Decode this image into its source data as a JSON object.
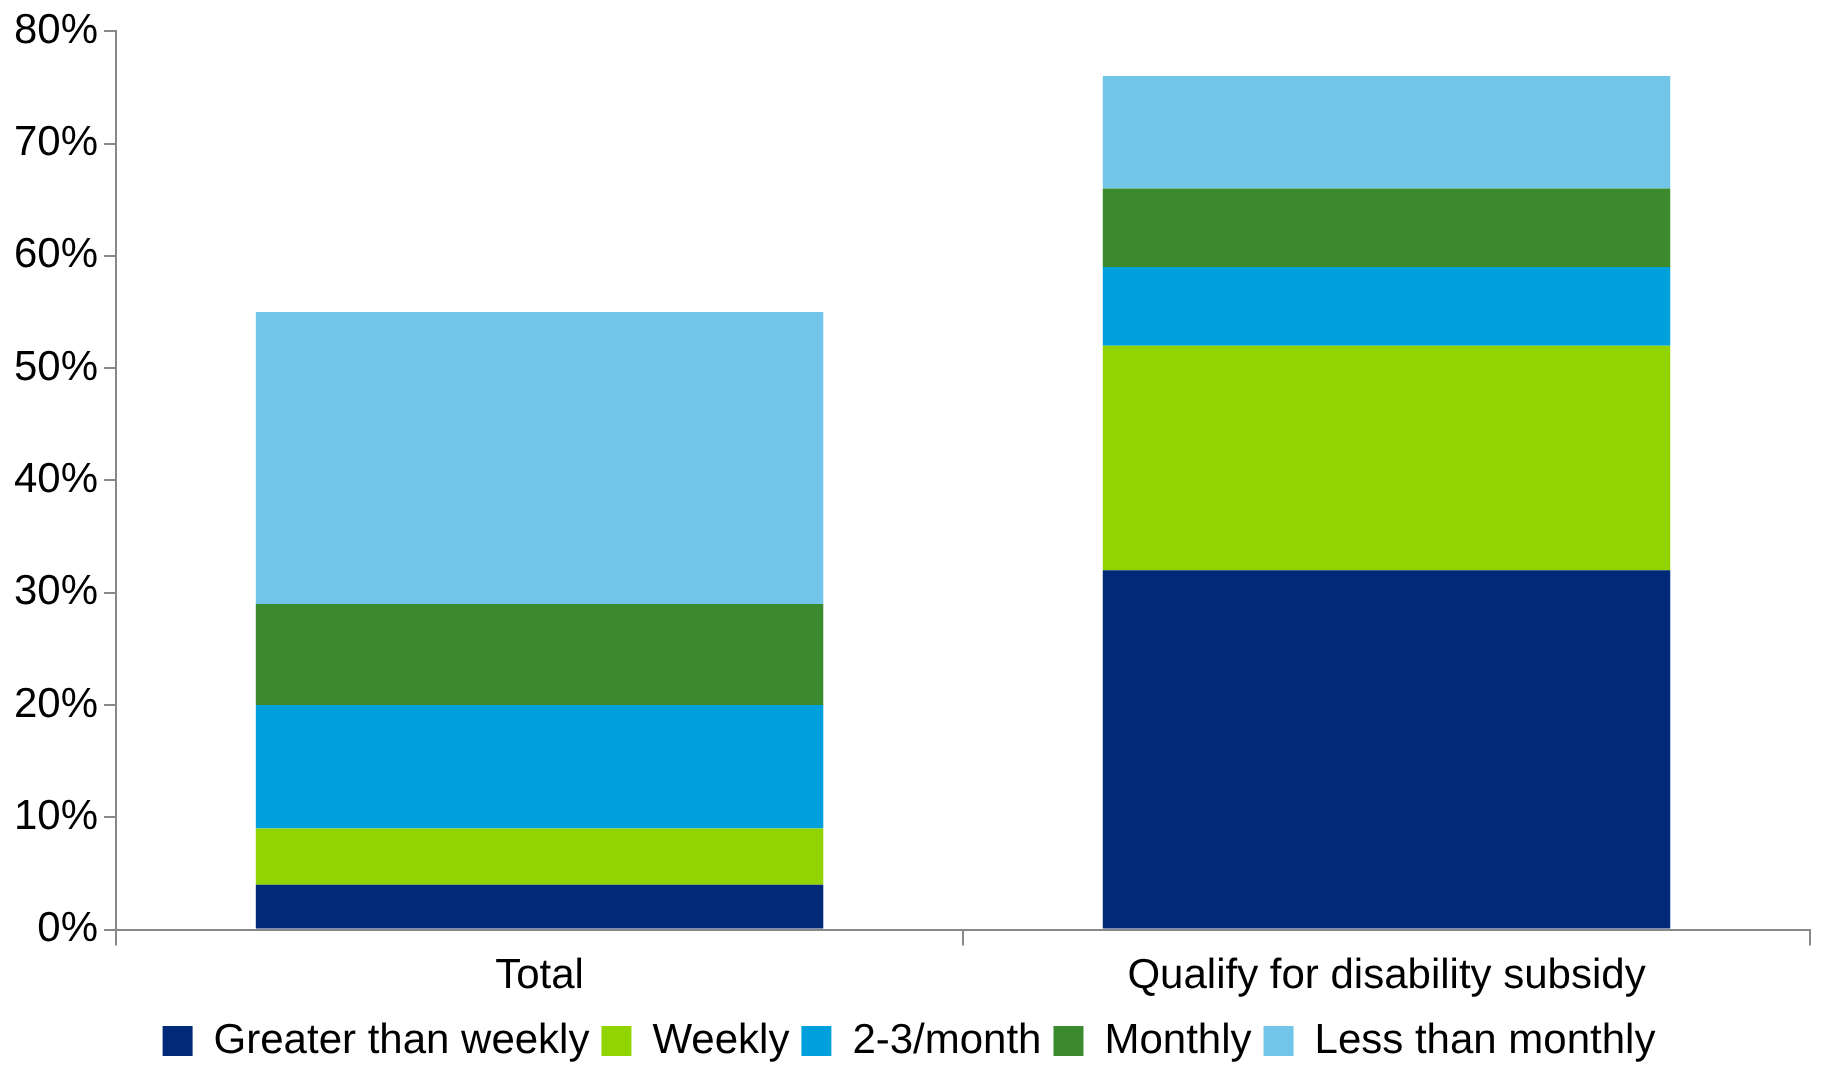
{
  "chart_data": {
    "type": "bar",
    "stacked": true,
    "categories": [
      "Total",
      "Qualify for disability subsidy"
    ],
    "series": [
      {
        "name": "Greater than weekly",
        "color": "#002a77",
        "values": [
          4,
          32
        ]
      },
      {
        "name": "Weekly",
        "color": "#92d400",
        "values": [
          5,
          20
        ]
      },
      {
        "name": "2-3/month",
        "color": "#00a0dc",
        "values": [
          11,
          7
        ]
      },
      {
        "name": "Monthly",
        "color": "#3c8a2e",
        "values": [
          9,
          7
        ]
      },
      {
        "name": "Less than monthly",
        "color": "#71c5e8",
        "values": [
          26,
          10
        ]
      }
    ],
    "ylim": [
      0,
      80
    ],
    "yticks": [
      {
        "value": 0,
        "label": "0%"
      },
      {
        "value": 10,
        "label": "10%"
      },
      {
        "value": 20,
        "label": "20%"
      },
      {
        "value": 30,
        "label": "30%"
      },
      {
        "value": 40,
        "label": "40%"
      },
      {
        "value": 50,
        "label": "50%"
      },
      {
        "value": 60,
        "label": "60%"
      },
      {
        "value": 70,
        "label": "70%"
      },
      {
        "value": 80,
        "label": "80%"
      }
    ],
    "grid": false,
    "legend": "bottom"
  }
}
